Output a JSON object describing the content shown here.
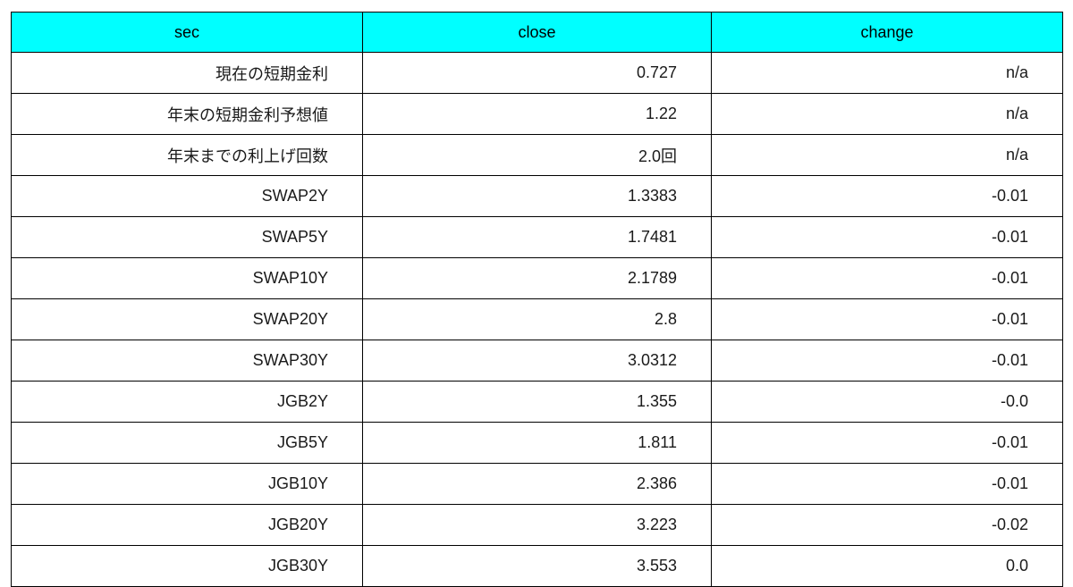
{
  "chart_data": {
    "type": "table",
    "columns": [
      "sec",
      "close",
      "change"
    ],
    "rows": [
      [
        "現在の短期金利",
        "0.727",
        "n/a"
      ],
      [
        "年末の短期金利予想値",
        "1.22",
        "n/a"
      ],
      [
        "年末までの利上げ回数",
        "2.0回",
        "n/a"
      ],
      [
        "SWAP2Y",
        "1.3383",
        "-0.01"
      ],
      [
        "SWAP5Y",
        "1.7481",
        "-0.01"
      ],
      [
        "SWAP10Y",
        "2.1789",
        "-0.01"
      ],
      [
        "SWAP20Y",
        "2.8",
        "-0.01"
      ],
      [
        "SWAP30Y",
        "3.0312",
        "-0.01"
      ],
      [
        "JGB2Y",
        "1.355",
        "-0.0"
      ],
      [
        "JGB5Y",
        "1.811",
        "-0.01"
      ],
      [
        "JGB10Y",
        "2.386",
        "-0.01"
      ],
      [
        "JGB20Y",
        "3.223",
        "-0.02"
      ],
      [
        "JGB30Y",
        "3.553",
        "0.0"
      ]
    ],
    "layout": {
      "header_bg": "#00ffff",
      "header_text_color": "#000000",
      "body_text_color": "#1a1a1a",
      "border_color": "#000000",
      "header_align": "center",
      "body_align": "right",
      "grid": "on"
    }
  }
}
